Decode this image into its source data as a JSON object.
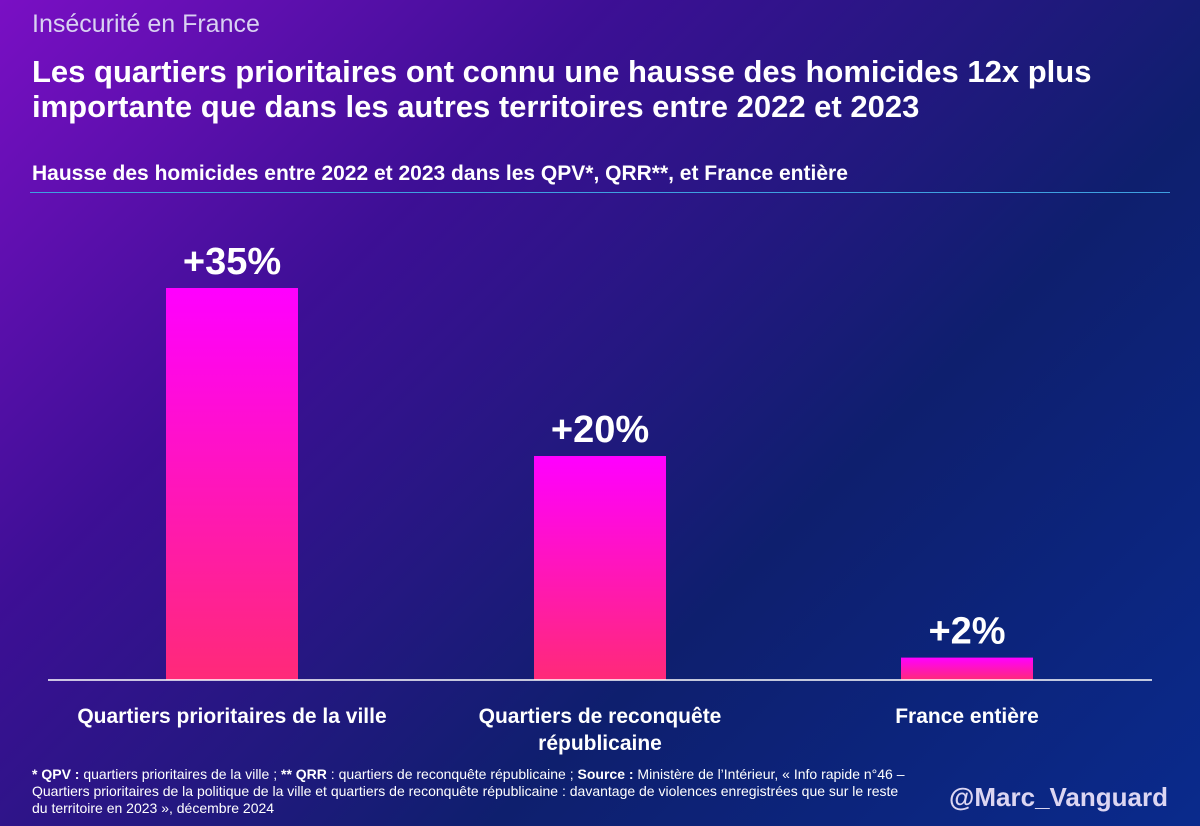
{
  "kicker": "Insécurité en France",
  "headline": "Les quartiers prioritaires ont connu une hausse des homicides 12x plus importante que dans les autres territoires entre 2022 et 2023",
  "chart_data": {
    "type": "bar",
    "title": "Hausse des homicides entre 2022 et 2023 dans les QPV*, QRR**, et France entière",
    "categories": [
      "Quartiers prioritaires de la ville",
      "Quartiers de reconquête républicaine",
      "France entière"
    ],
    "values": [
      35,
      20,
      2
    ],
    "labels": [
      "+35%",
      "+20%",
      "+2%"
    ],
    "xlabel": "",
    "ylabel": "",
    "ylim": [
      0,
      40
    ],
    "grid": false,
    "legend": "none",
    "colors": {
      "bar_top": "#ff00ff",
      "bar_bottom": "#ff2a78",
      "axis": "#ffffff"
    }
  },
  "footnote": {
    "qpv_key": "* QPV :",
    "qpv_text": " quartiers prioritaires de la ville ; ",
    "qrr_key": "** QRR",
    "qrr_text": " : quartiers de reconquête républicaine  ; ",
    "source_key": "Source :",
    "source_text": " Ministère de l’Intérieur, « Info rapide n°46 – Quartiers prioritaires de la politique de la ville et quartiers de reconquête républicaine : davantage de violences enregistrées que sur le reste du territoire en 2023 », décembre 2024"
  },
  "handle": "@Marc_Vanguard"
}
